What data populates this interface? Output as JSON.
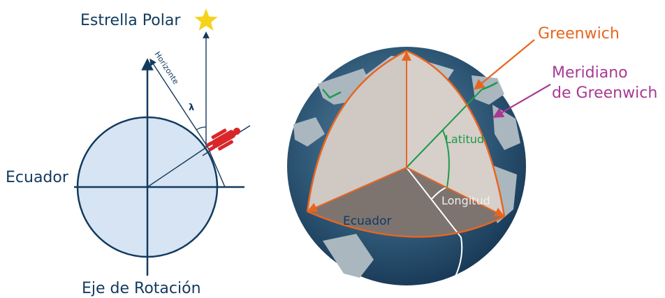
{
  "left_diagram": {
    "polar_star": "Estrella Polar",
    "horizon": "Horizonte",
    "lambda": "λ",
    "equator": "Ecuador",
    "rotation_axis": "Eje de Rotación"
  },
  "right_diagram": {
    "greenwich": "Greenwich",
    "meridian_line1": "Meridiano",
    "meridian_line2": "de Greenwich",
    "latitude": "Latitud",
    "longitude": "Longitud",
    "equator": "Ecuador"
  },
  "colors": {
    "navy": "#123a5e",
    "orange": "#e8651f",
    "magenta": "#a83a93",
    "green": "#1d9a4c",
    "star": "#f6d21b",
    "person": "#d9262a",
    "circle_fill": "#d6e4f3"
  }
}
